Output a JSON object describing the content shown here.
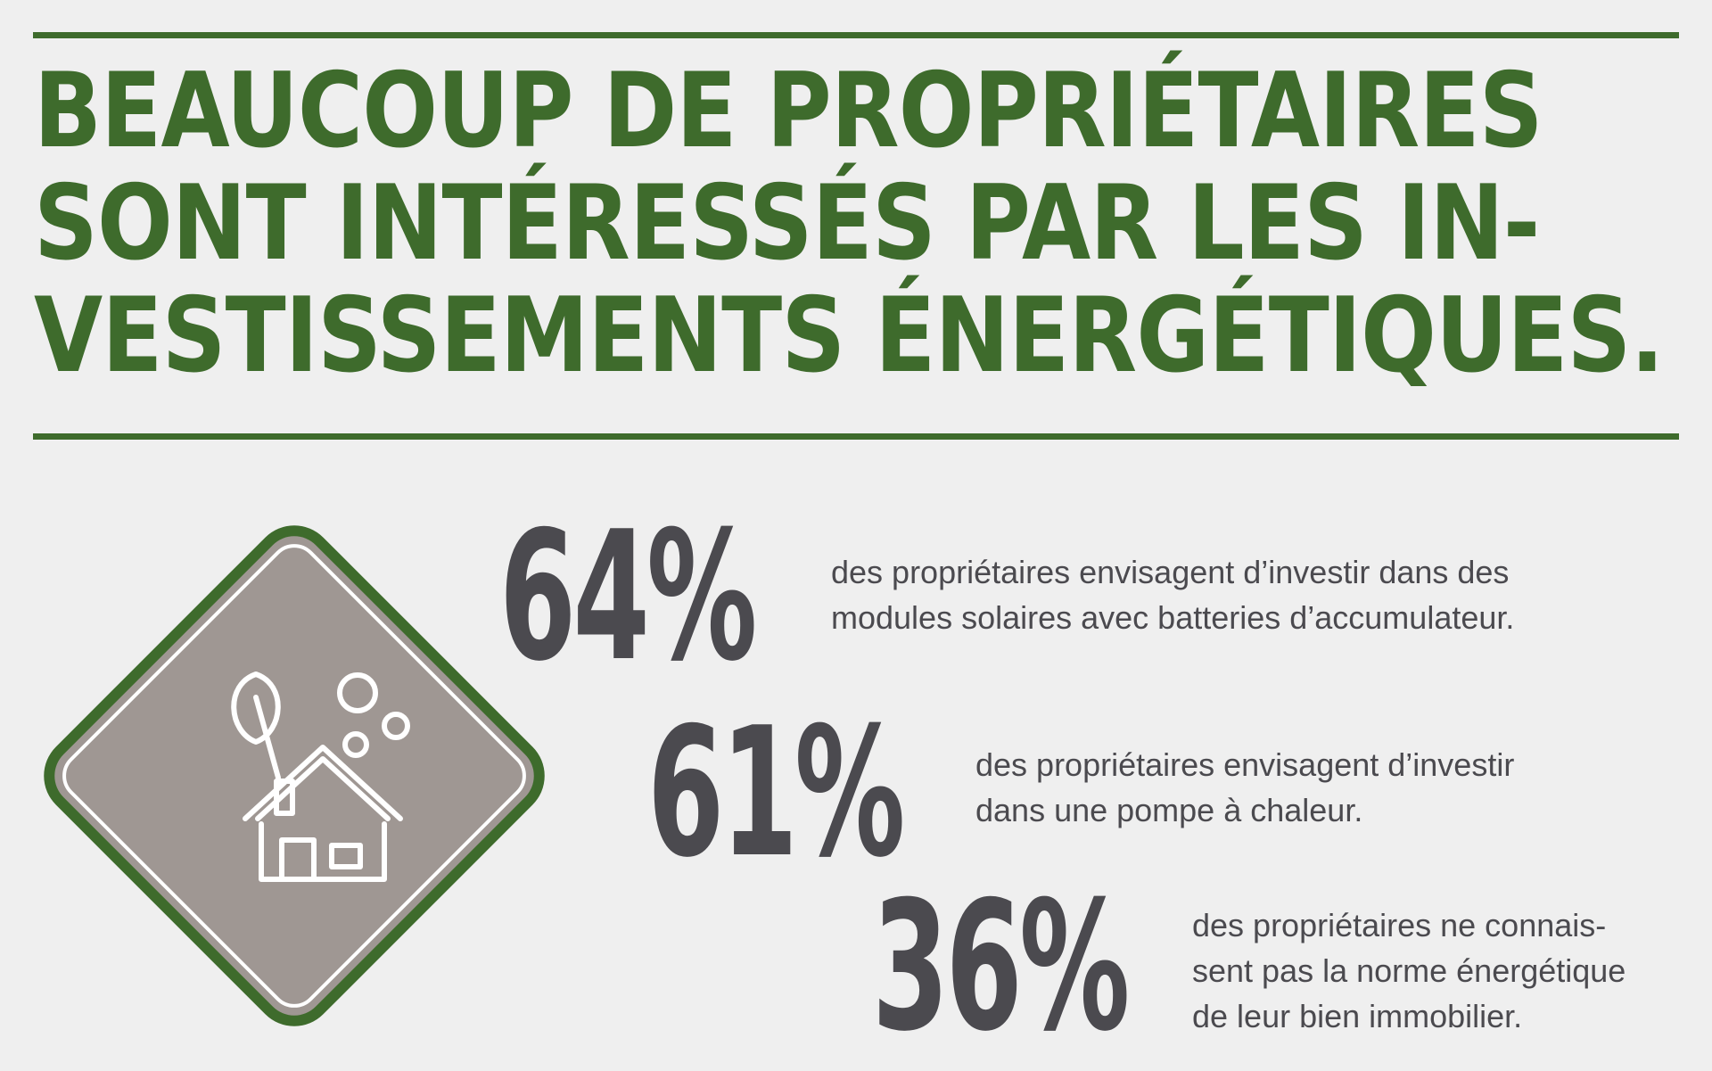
{
  "headline": {
    "lines": [
      "BEAUCOUP DE PROPRIÉTAIRES",
      "SONT INTÉRESSÉS PAR LES IN-",
      "VESTISSEMENTS ÉNERGÉTIQUES."
    ]
  },
  "badge": {
    "icon": "eco-house-icon",
    "colors": {
      "border": "#3e6b2c",
      "fill": "#9f9793",
      "line": "#ffffff"
    }
  },
  "stats": [
    {
      "value": "64%",
      "lines": [
        "des propriétaires envisagent d’investir dans des",
        "modules solaires avec batteries d’accumulateur."
      ]
    },
    {
      "value": "61%",
      "lines": [
        "des propriétaires envisagent d’investir",
        "dans une pompe à chaleur."
      ]
    },
    {
      "value": "36%",
      "lines": [
        "des propriétaires ne connais-",
        "sent pas la norme énergétique",
        "de leur bien immobilier."
      ]
    }
  ],
  "colors": {
    "accent": "#3e6b2c",
    "text": "#4b4a4f",
    "background": "#efefef"
  }
}
